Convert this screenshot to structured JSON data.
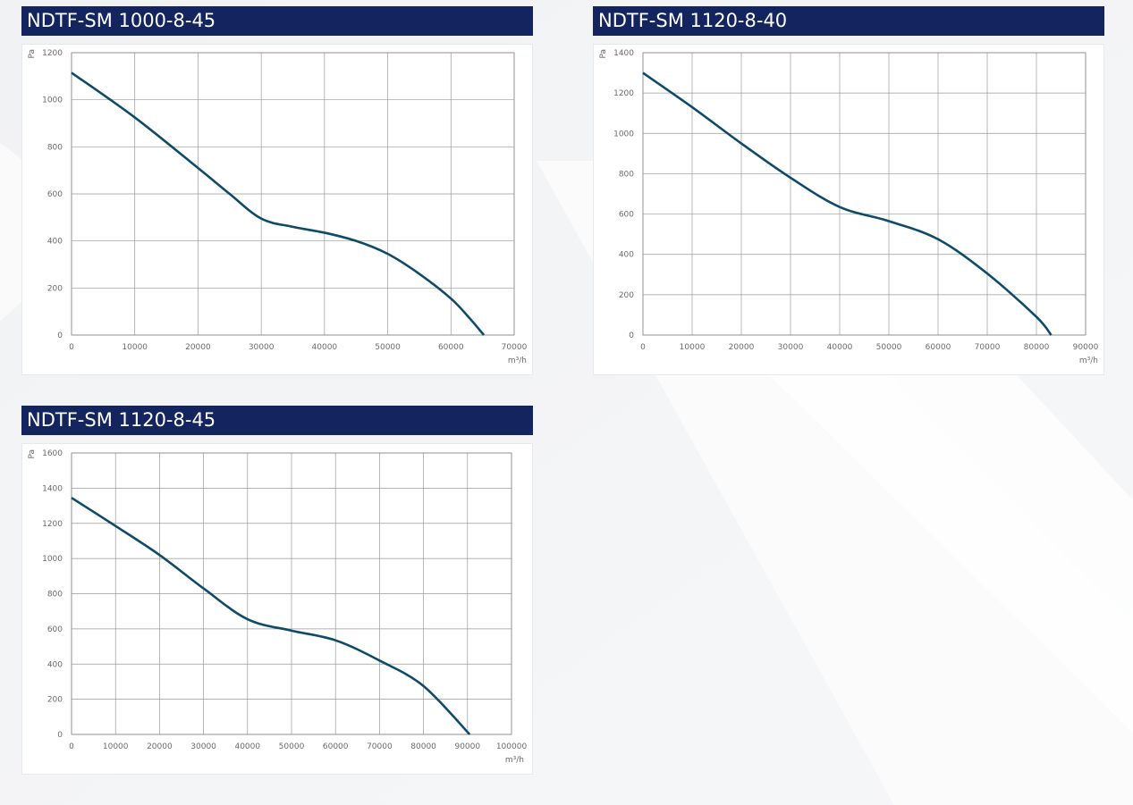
{
  "chart_data": [
    {
      "type": "line",
      "title": "NDTF-SM 1000-8-45",
      "x_label": "m³/h",
      "y_label": "Pa",
      "color": "#0e4b69",
      "grid": true,
      "x": [
        0,
        10000,
        20000,
        25000,
        30000,
        35000,
        40000,
        45000,
        50000,
        55000,
        60000,
        63000,
        65200
      ],
      "values": [
        1115,
        925,
        710,
        600,
        495,
        460,
        435,
        400,
        345,
        260,
        155,
        70,
        0
      ],
      "xlim": [
        0,
        70000
      ],
      "xticks": [
        0,
        10000,
        20000,
        30000,
        40000,
        50000,
        60000,
        70000
      ],
      "ylim": [
        0,
        1200
      ],
      "yticks": [
        0,
        200,
        400,
        600,
        800,
        1000,
        1200
      ]
    },
    {
      "type": "line",
      "title": "NDTF-SM 1120-8-40",
      "x_label": "m³/h",
      "y_label": "Pa",
      "color": "#0e4b69",
      "grid": true,
      "x": [
        0,
        10000,
        20000,
        30000,
        40000,
        50000,
        60000,
        70000,
        80000,
        83000
      ],
      "values": [
        1300,
        1130,
        950,
        780,
        635,
        565,
        475,
        305,
        90,
        0
      ],
      "xlim": [
        0,
        90000
      ],
      "xticks": [
        0,
        10000,
        20000,
        30000,
        40000,
        50000,
        60000,
        70000,
        80000,
        90000
      ],
      "ylim": [
        0,
        1400
      ],
      "yticks": [
        0,
        200,
        400,
        600,
        800,
        1000,
        1200,
        1400
      ]
    },
    {
      "type": "line",
      "title": "NDTF-SM 1120-8-45",
      "x_label": "m³/h",
      "y_label": "Pa",
      "color": "#0e4b69",
      "grid": true,
      "x": [
        0,
        10000,
        20000,
        30000,
        40000,
        50000,
        60000,
        70000,
        80000,
        90500
      ],
      "values": [
        1345,
        1185,
        1020,
        830,
        655,
        590,
        535,
        420,
        275,
        0
      ],
      "xlim": [
        0,
        100000
      ],
      "xticks": [
        0,
        10000,
        20000,
        30000,
        40000,
        50000,
        60000,
        70000,
        80000,
        90000,
        100000
      ],
      "ylim": [
        0,
        1600
      ],
      "yticks": [
        0,
        200,
        400,
        600,
        800,
        1000,
        1200,
        1400,
        1600
      ]
    }
  ]
}
